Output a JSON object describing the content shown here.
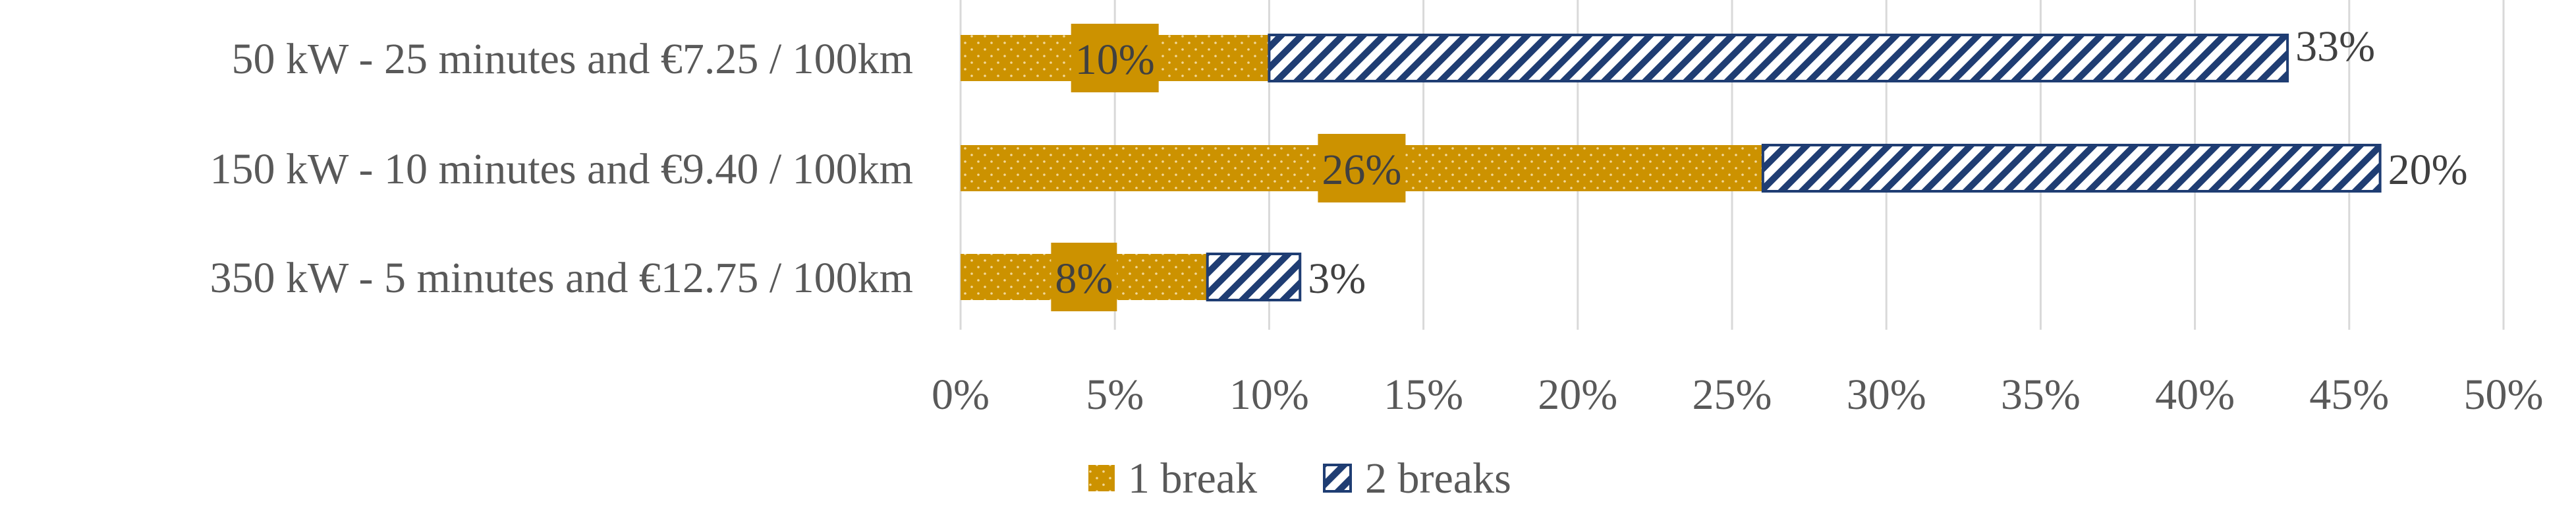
{
  "chart_data": {
    "type": "bar",
    "orientation": "horizontal",
    "stacked": true,
    "categories": [
      "50 kW - 25 minutes and €7.25 / 100km",
      "150 kW - 10 minutes and €9.40 / 100km",
      "350 kW - 5 minutes and €12.75 / 100km"
    ],
    "series": [
      {
        "name": "1 break",
        "values": [
          10,
          26,
          8
        ],
        "labels": [
          "10%",
          "26%",
          "8%"
        ],
        "color": "#CC9200",
        "pattern": "dots"
      },
      {
        "name": "2 breaks",
        "values": [
          33,
          20,
          3
        ],
        "labels": [
          "33%",
          "20%",
          "3%"
        ],
        "color": "#1F3D73",
        "pattern": "diagonal-hatch"
      }
    ],
    "xlim": [
      0,
      50
    ],
    "x_ticks": [
      0,
      5,
      10,
      15,
      20,
      25,
      30,
      35,
      40,
      45,
      50
    ],
    "x_tick_labels": [
      "0%",
      "5%",
      "10%",
      "15%",
      "20%",
      "25%",
      "30%",
      "35%",
      "40%",
      "45%",
      "50%"
    ],
    "grid": "vertical",
    "legend_position": "bottom",
    "title": "",
    "xlabel": "",
    "ylabel": ""
  }
}
